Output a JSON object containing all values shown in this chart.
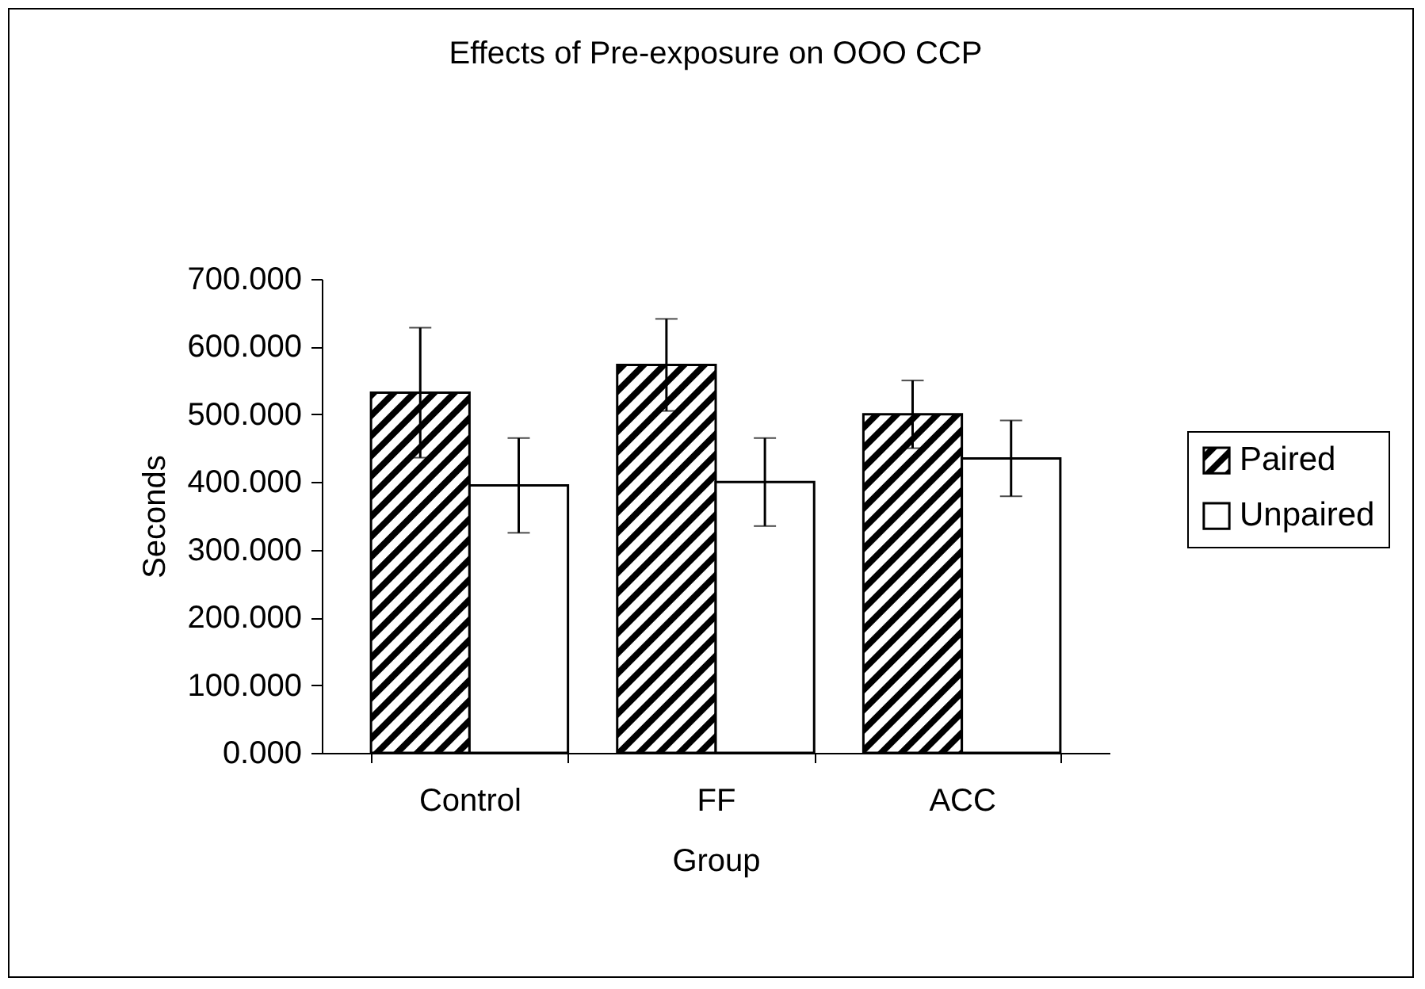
{
  "chart_data": {
    "type": "bar",
    "title": "Effects of Pre-exposure on OOO CCP",
    "xlabel": "Group",
    "ylabel": "Seconds",
    "categories": [
      "Control",
      "FF",
      "ACC"
    ],
    "series": [
      {
        "name": "Paired",
        "color": "#000000",
        "values": [
          532,
          573,
          500
        ],
        "errors": [
          96,
          68,
          50
        ]
      },
      {
        "name": "Unpaired",
        "color": "#ffffff",
        "values": [
          395,
          400,
          435
        ],
        "errors": [
          70,
          65,
          56
        ]
      }
    ],
    "ylim": [
      0,
      700
    ],
    "yticks": [
      {
        "value": 0,
        "label": "0.000"
      },
      {
        "value": 100,
        "label": "100.000"
      },
      {
        "value": 200,
        "label": "200.000"
      },
      {
        "value": 300,
        "label": "300.000"
      },
      {
        "value": 400,
        "label": "400.000"
      },
      {
        "value": 500,
        "label": "500.000"
      },
      {
        "value": 600,
        "label": "600.000"
      },
      {
        "value": 700,
        "label": "700.000"
      }
    ],
    "grid": false,
    "legend": "right"
  }
}
